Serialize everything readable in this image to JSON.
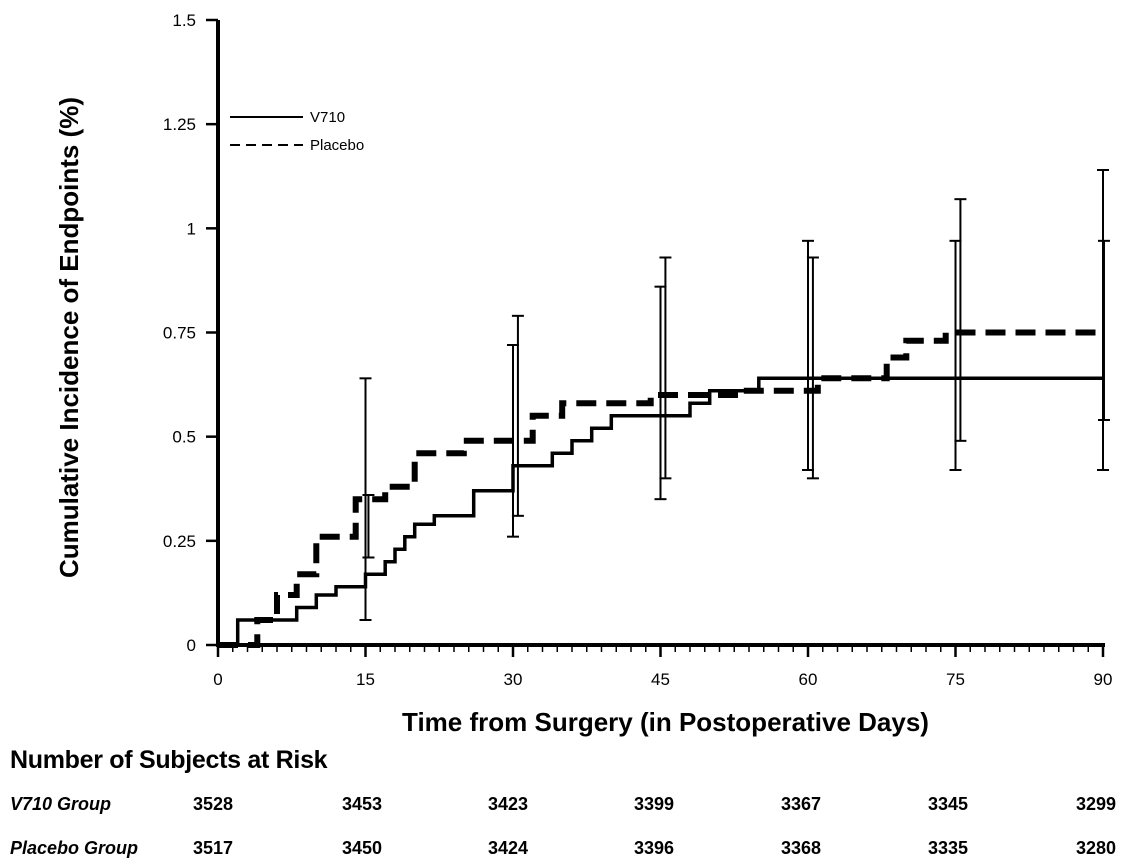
{
  "chart_data": {
    "type": "line",
    "xlabel": "Time from Surgery (in Postoperative Days)",
    "ylabel": "Cumulative Incidence of Endpoints (%)",
    "xlim": [
      0,
      90
    ],
    "ylim": [
      0,
      1.5
    ],
    "x_ticks": [
      "0",
      "15",
      "30",
      "45",
      "60",
      "75",
      "90"
    ],
    "y_ticks": [
      "0",
      "0.25",
      "0.5",
      "0.75",
      "1",
      "1.25",
      "1.5"
    ],
    "legend_position": "top-left",
    "series": [
      {
        "name": "V710",
        "style": "solid",
        "x": [
          0,
          2,
          2,
          8,
          8,
          10,
          10,
          12,
          12,
          15,
          15,
          17,
          17,
          18,
          18,
          19,
          19,
          20,
          20,
          22,
          22,
          24,
          24,
          26,
          26,
          30,
          30,
          34,
          34,
          36,
          36,
          38,
          38,
          40,
          40,
          44,
          44,
          48,
          48,
          50,
          50,
          53,
          53,
          55,
          55,
          90
        ],
        "y": [
          0,
          0,
          0.06,
          0.06,
          0.09,
          0.09,
          0.12,
          0.12,
          0.14,
          0.14,
          0.17,
          0.17,
          0.2,
          0.2,
          0.23,
          0.23,
          0.26,
          0.26,
          0.29,
          0.29,
          0.31,
          0.31,
          0.31,
          0.31,
          0.37,
          0.37,
          0.43,
          0.43,
          0.46,
          0.46,
          0.49,
          0.49,
          0.52,
          0.52,
          0.55,
          0.55,
          0.55,
          0.55,
          0.58,
          0.58,
          0.61,
          0.61,
          0.61,
          0.61,
          0.64,
          0.64
        ]
      },
      {
        "name": "Placebo",
        "style": "dashed",
        "x": [
          0,
          2,
          2,
          4,
          4,
          6,
          6,
          8,
          8,
          10,
          10,
          14,
          14,
          17,
          17,
          20,
          20,
          25,
          25,
          28,
          28,
          32,
          32,
          35,
          35,
          44,
          44,
          53,
          53,
          61,
          61,
          68,
          68,
          70,
          70,
          74,
          74,
          90
        ],
        "y": [
          0,
          0,
          0,
          0,
          0.06,
          0.06,
          0.12,
          0.12,
          0.17,
          0.17,
          0.26,
          0.26,
          0.35,
          0.35,
          0.38,
          0.38,
          0.46,
          0.46,
          0.49,
          0.49,
          0.49,
          0.49,
          0.55,
          0.55,
          0.58,
          0.58,
          0.6,
          0.6,
          0.61,
          0.61,
          0.64,
          0.64,
          0.69,
          0.69,
          0.73,
          0.73,
          0.75,
          0.75
        ]
      }
    ],
    "error_bars": [
      {
        "x": 15,
        "low": 0.06,
        "high": 0.64
      },
      {
        "x": 15.3,
        "low": 0.21,
        "high": 0.36
      },
      {
        "x": 30,
        "low": 0.26,
        "high": 0.72
      },
      {
        "x": 30.5,
        "low": 0.31,
        "high": 0.79
      },
      {
        "x": 45,
        "low": 0.35,
        "high": 0.86
      },
      {
        "x": 45.5,
        "low": 0.4,
        "high": 0.93
      },
      {
        "x": 60,
        "low": 0.42,
        "high": 0.97
      },
      {
        "x": 60.5,
        "low": 0.4,
        "high": 0.93
      },
      {
        "x": 75,
        "low": 0.42,
        "high": 0.97
      },
      {
        "x": 75.5,
        "low": 0.49,
        "high": 1.07
      },
      {
        "x": 90,
        "low": 0.42,
        "high": 1.14
      },
      {
        "x": 90.1,
        "low": 0.54,
        "high": 0.97
      }
    ]
  },
  "risk_table": {
    "title": "Number of Subjects at Risk",
    "rows": [
      {
        "label": "V710 Group",
        "values": [
          "3528",
          "3453",
          "3423",
          "3399",
          "3367",
          "3345",
          "3299"
        ]
      },
      {
        "label": "Placebo Group",
        "values": [
          "3517",
          "3450",
          "3424",
          "3396",
          "3368",
          "3335",
          "3280"
        ]
      }
    ]
  }
}
